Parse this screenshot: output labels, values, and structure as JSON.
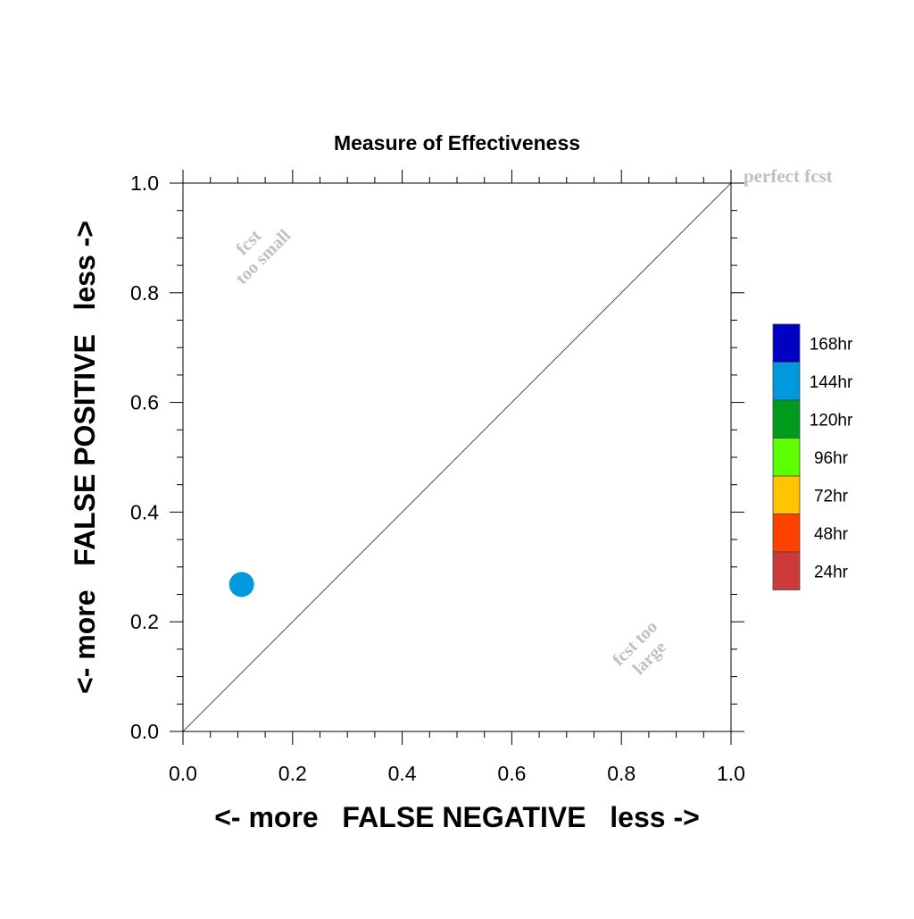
{
  "chart_data": {
    "type": "scatter",
    "title": "Measure of Effectiveness",
    "xlabel": "<- more   FALSE NEGATIVE   less ->",
    "ylabel": "<- more   FALSE POSITIVE   less ->",
    "xlim": [
      0.0,
      1.0
    ],
    "ylim": [
      0.0,
      1.0
    ],
    "x_ticks": [
      "0.0",
      "0.2",
      "0.4",
      "0.6",
      "0.8",
      "1.0"
    ],
    "y_ticks": [
      "0.0",
      "0.2",
      "0.4",
      "0.6",
      "0.8",
      "1.0"
    ],
    "grid": false,
    "diagonal_line": true,
    "annotations": {
      "perfect": "perfect fcst",
      "too_small_line1": "fcst",
      "too_small_line2": "too small",
      "too_large_line1": "fcst too",
      "too_large_line2": "large"
    },
    "points": [
      {
        "x": 0.107,
        "y": 0.268,
        "series": "144hr"
      }
    ],
    "legend": {
      "placement": "right",
      "entries": [
        {
          "label": "168hr",
          "color": "#0000c4"
        },
        {
          "label": "144hr",
          "color": "#0099dd"
        },
        {
          "label": "120hr",
          "color": "#009a1d"
        },
        {
          "label": "96hr",
          "color": "#5bff00"
        },
        {
          "label": "72hr",
          "color": "#ffc400"
        },
        {
          "label": "48hr",
          "color": "#ff4200"
        },
        {
          "label": "24hr",
          "color": "#cc3a3a"
        }
      ]
    }
  }
}
